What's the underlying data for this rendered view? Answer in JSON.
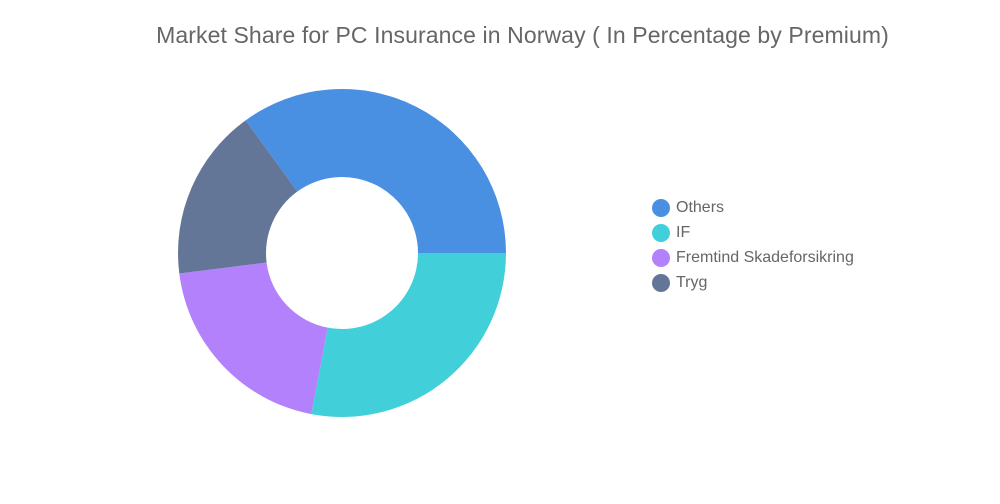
{
  "chart_data": {
    "type": "pie",
    "title": "Market Share for PC Insurance in Norway ( In Percentage by Premium)",
    "donut": true,
    "legend_position": "right",
    "series": [
      {
        "name": "Others",
        "value": 35,
        "color": "#4A90E2"
      },
      {
        "name": "IF",
        "value": 28,
        "color": "#41D0DA"
      },
      {
        "name": "Fremtind Skadeforsikring",
        "value": 20,
        "color": "#B381FC"
      },
      {
        "name": "Tryg",
        "value": 17,
        "color": "#647697"
      }
    ]
  }
}
